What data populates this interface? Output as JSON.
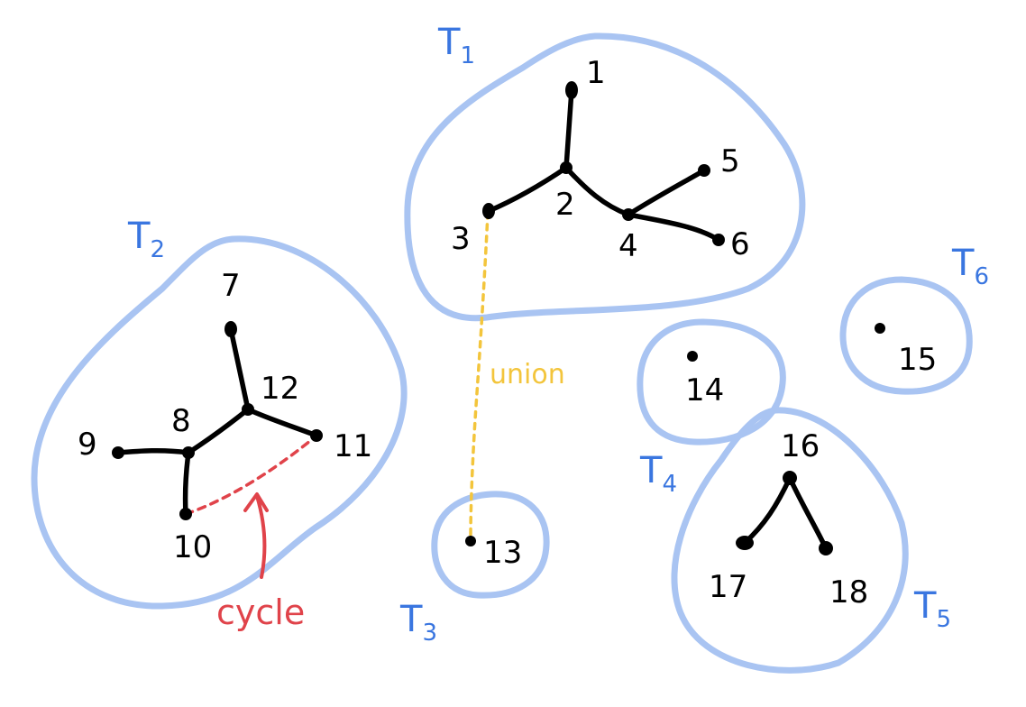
{
  "trees": [
    {
      "id": "t1",
      "label": "T",
      "sub": "1"
    },
    {
      "id": "t2",
      "label": "T",
      "sub": "2"
    },
    {
      "id": "t3",
      "label": "T",
      "sub": "3"
    },
    {
      "id": "t4",
      "label": "T",
      "sub": "4"
    },
    {
      "id": "t5",
      "label": "T",
      "sub": "5"
    },
    {
      "id": "t6",
      "label": "T",
      "sub": "6"
    }
  ],
  "nodes": [
    {
      "id": "1",
      "label": "1"
    },
    {
      "id": "2",
      "label": "2"
    },
    {
      "id": "3",
      "label": "3"
    },
    {
      "id": "4",
      "label": "4"
    },
    {
      "id": "5",
      "label": "5"
    },
    {
      "id": "6",
      "label": "6"
    },
    {
      "id": "7",
      "label": "7"
    },
    {
      "id": "8",
      "label": "8"
    },
    {
      "id": "9",
      "label": "9"
    },
    {
      "id": "10",
      "label": "10"
    },
    {
      "id": "11",
      "label": "11"
    },
    {
      "id": "12",
      "label": "12"
    },
    {
      "id": "13",
      "label": "13"
    },
    {
      "id": "14",
      "label": "14"
    },
    {
      "id": "15",
      "label": "15"
    },
    {
      "id": "16",
      "label": "16"
    },
    {
      "id": "17",
      "label": "17"
    },
    {
      "id": "18",
      "label": "18"
    }
  ],
  "edges": [
    [
      "1",
      "2"
    ],
    [
      "2",
      "3"
    ],
    [
      "2",
      "4"
    ],
    [
      "4",
      "5"
    ],
    [
      "4",
      "6"
    ],
    [
      "7",
      "12"
    ],
    [
      "12",
      "8"
    ],
    [
      "12",
      "11"
    ],
    [
      "8",
      "9"
    ],
    [
      "8",
      "10"
    ],
    [
      "16",
      "17"
    ],
    [
      "16",
      "18"
    ]
  ],
  "annotations": {
    "union": {
      "label": "union",
      "from": "3",
      "to": "13"
    },
    "cycle": {
      "label": "cycle",
      "from": "10",
      "to": "11"
    }
  },
  "colors": {
    "blob": "#a9c4f2",
    "tree_label": "#3a76e0",
    "union": "#f3c53c",
    "cycle": "#e0434a",
    "node": "#000000"
  }
}
